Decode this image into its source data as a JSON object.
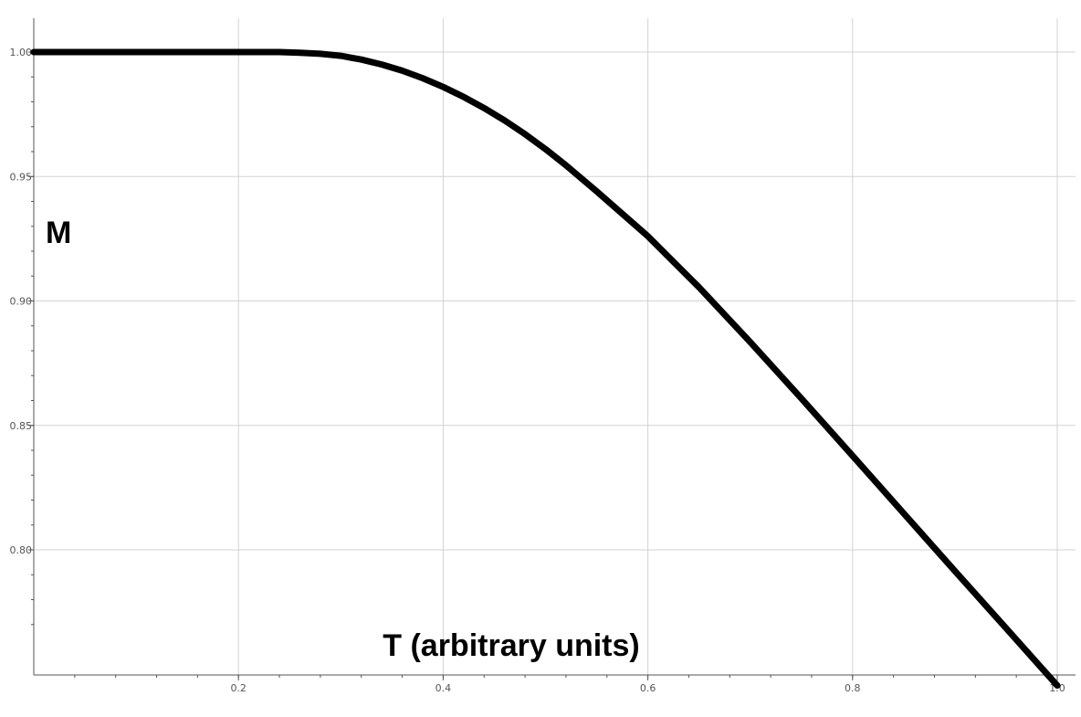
{
  "chart_data": {
    "type": "line",
    "title": "",
    "xlabel": "T (arbitrary units)",
    "ylabel": "M",
    "xlim": [
      0,
      1.0
    ],
    "ylim": [
      0.76,
      1.015
    ],
    "grid": true,
    "x_ticks": [
      "0.2",
      "0.4",
      "0.6",
      "0.8",
      "1.0"
    ],
    "y_ticks": [
      "1.00",
      "0.95",
      "0.90",
      "0.85",
      "0.80"
    ],
    "colors": {
      "line": "#000000",
      "grid": "#d3d3d3",
      "axis": "#555555"
    },
    "series": [
      {
        "x": [
          0,
          0.05,
          0.1,
          0.15,
          0.2,
          0.22,
          0.24,
          0.26,
          0.28,
          0.3,
          0.32,
          0.34,
          0.36,
          0.38,
          0.4,
          0.42,
          0.44,
          0.46,
          0.48,
          0.5,
          0.52,
          0.55,
          0.6,
          0.65,
          0.7,
          0.75,
          0.8,
          0.85,
          0.9,
          0.95,
          1.0
        ],
        "y": [
          1.0,
          1.0,
          1.0,
          1.0,
          1.0,
          1.0,
          1.0,
          0.9997,
          0.9993,
          0.9985,
          0.997,
          0.995,
          0.9925,
          0.9895,
          0.986,
          0.982,
          0.9775,
          0.9725,
          0.967,
          0.961,
          0.9545,
          0.944,
          0.926,
          0.9055,
          0.8835,
          0.8608,
          0.8378,
          0.8146,
          0.7915,
          0.7685,
          0.7455
        ]
      }
    ]
  }
}
